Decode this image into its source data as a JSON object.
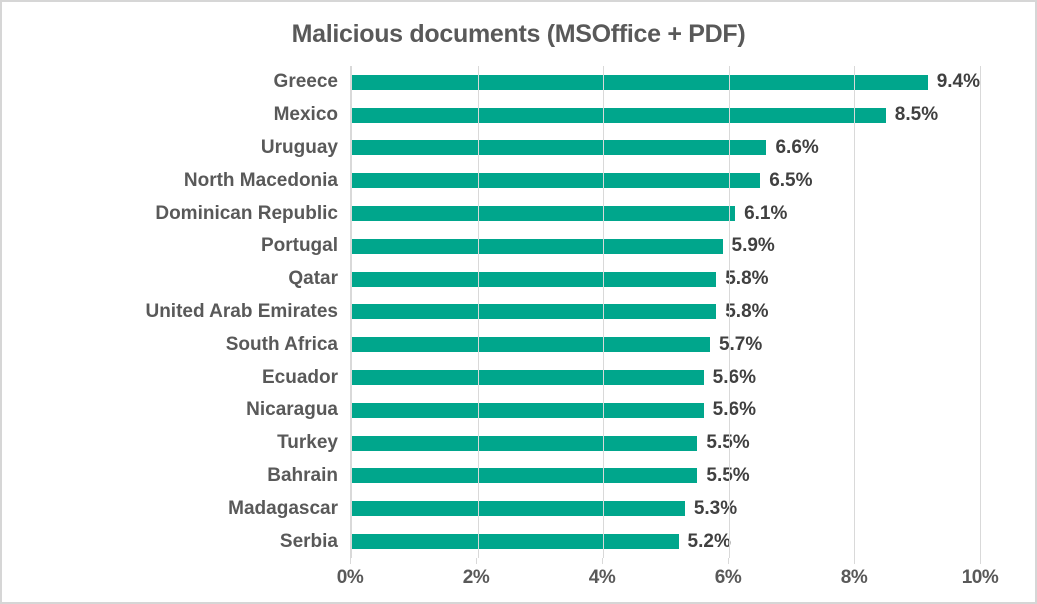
{
  "title": "Malicious documents (MSOffice + PDF)",
  "chart_data": {
    "type": "bar",
    "orientation": "horizontal",
    "title": "Malicious documents (MSOffice + PDF)",
    "categories": [
      "Greece",
      "Mexico",
      "Uruguay",
      "North Macedonia",
      "Dominican Republic",
      "Portugal",
      "Qatar",
      "United Arab Emirates",
      "South Africa",
      "Ecuador",
      "Nicaragua",
      "Turkey",
      "Bahrain",
      "Madagascar",
      "Serbia"
    ],
    "values": [
      9.4,
      8.5,
      6.6,
      6.5,
      6.1,
      5.9,
      5.8,
      5.8,
      5.7,
      5.6,
      5.6,
      5.5,
      5.5,
      5.3,
      5.2
    ],
    "value_labels": [
      "9.4%",
      "8.5%",
      "6.6%",
      "6.5%",
      "6.1%",
      "5.9%",
      "5.8%",
      "5.8%",
      "5.7%",
      "5.6%",
      "5.6%",
      "5.5%",
      "5.5%",
      "5.3%",
      "5.2%"
    ],
    "xlabel": "",
    "ylabel": "",
    "xlim": [
      0,
      10
    ],
    "x_tick_values": [
      0,
      2,
      4,
      6,
      8,
      10
    ],
    "x_tick_labels": [
      "0%",
      "2%",
      "4%",
      "6%",
      "8%",
      "10%"
    ],
    "grid": "vertical",
    "legend": "none",
    "colors": {
      "bar": "#00A68C",
      "gridline": "#D9D9D9",
      "axis_line": "#D9D9D9",
      "title_text": "#595959",
      "category_text": "#595959",
      "value_text": "#404040",
      "tick_text": "#595959",
      "frame_border": "#D6D6D6",
      "background": "#FFFFFF"
    }
  }
}
